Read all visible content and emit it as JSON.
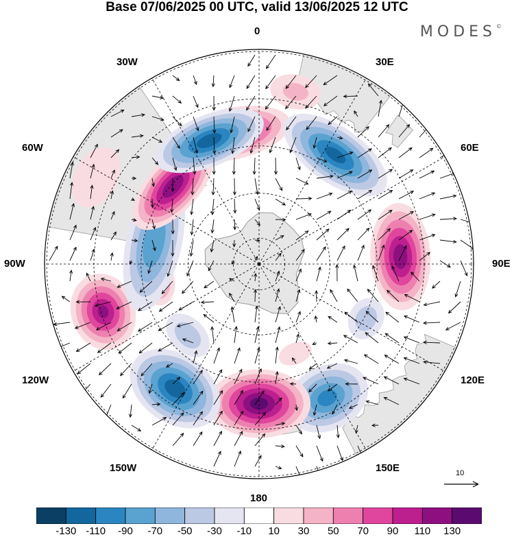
{
  "title": "Base 07/06/2025 00 UTC, valid 13/06/2025 12 UTC",
  "brand": {
    "name": "MODES",
    "mark": "©"
  },
  "map": {
    "projection": "south-polar-stereographic",
    "land_color": "#e6e6e6",
    "coast_color": "#9a9a9a",
    "lon_labels": [
      "0",
      "30E",
      "60E",
      "90E",
      "120E",
      "150E",
      "180",
      "150W",
      "120W",
      "90W",
      "60W",
      "30W"
    ],
    "anomalies": [
      {
        "lon": -12,
        "r": 0.62,
        "value": 115,
        "rx": 0.28,
        "ry": 0.12
      },
      {
        "lon": 35,
        "r": 0.62,
        "value": -115,
        "rx": 0.28,
        "ry": 0.13
      },
      {
        "lon": 87,
        "r": 0.66,
        "value": 120,
        "rx": 0.25,
        "ry": 0.14
      },
      {
        "lon": 117,
        "r": 0.56,
        "value": -40,
        "rx": 0.1,
        "ry": 0.08
      },
      {
        "lon": 153,
        "r": 0.7,
        "value": -95,
        "rx": 0.2,
        "ry": 0.15
      },
      {
        "lon": 180,
        "r": 0.65,
        "value": 135,
        "rx": 0.24,
        "ry": 0.16
      },
      {
        "lon": -146,
        "r": 0.7,
        "value": -120,
        "rx": 0.23,
        "ry": 0.16
      },
      {
        "lon": -107,
        "r": 0.76,
        "value": 110,
        "rx": 0.18,
        "ry": 0.15
      },
      {
        "lon": -100,
        "r": 0.48,
        "value": 65,
        "rx": 0.11,
        "ry": 0.08
      },
      {
        "lon": -78,
        "r": 0.5,
        "value": -85,
        "rx": 0.33,
        "ry": 0.13
      },
      {
        "lon": -48,
        "r": 0.54,
        "value": 125,
        "rx": 0.25,
        "ry": 0.12
      },
      {
        "lon": -22,
        "r": 0.62,
        "value": -120,
        "rx": 0.27,
        "ry": 0.12
      },
      {
        "lon": -62,
        "r": 0.86,
        "value": 25,
        "rx": 0.15,
        "ry": 0.1
      },
      {
        "lon": -135,
        "r": 0.47,
        "value": -40,
        "rx": 0.12,
        "ry": 0.08
      },
      {
        "lon": 158,
        "r": 0.45,
        "value": 25,
        "rx": 0.08,
        "ry": 0.05
      },
      {
        "lon": 12,
        "r": 0.82,
        "value": 30,
        "rx": 0.12,
        "ry": 0.08
      }
    ]
  },
  "vector_scale": {
    "label": "10"
  },
  "colorbar": {
    "colors": [
      "#0b3f64",
      "#13679e",
      "#2b85c0",
      "#5aa2d0",
      "#8fb6dc",
      "#bcc9e4",
      "#e5e5f2",
      "#ffffff",
      "#f9dce1",
      "#f4b3c6",
      "#ee80b0",
      "#e0469d",
      "#bc1f8e",
      "#8e0f80",
      "#5b0a70"
    ],
    "bounds": [
      -150,
      -130,
      -110,
      -90,
      -70,
      -50,
      -30,
      -10,
      10,
      30,
      50,
      70,
      90,
      110,
      130,
      150
    ],
    "tick_labels": [
      "-130",
      "-110",
      "-90",
      "-70",
      "-50",
      "-30",
      "-10",
      "10",
      "30",
      "50",
      "70",
      "90",
      "110",
      "130"
    ]
  }
}
